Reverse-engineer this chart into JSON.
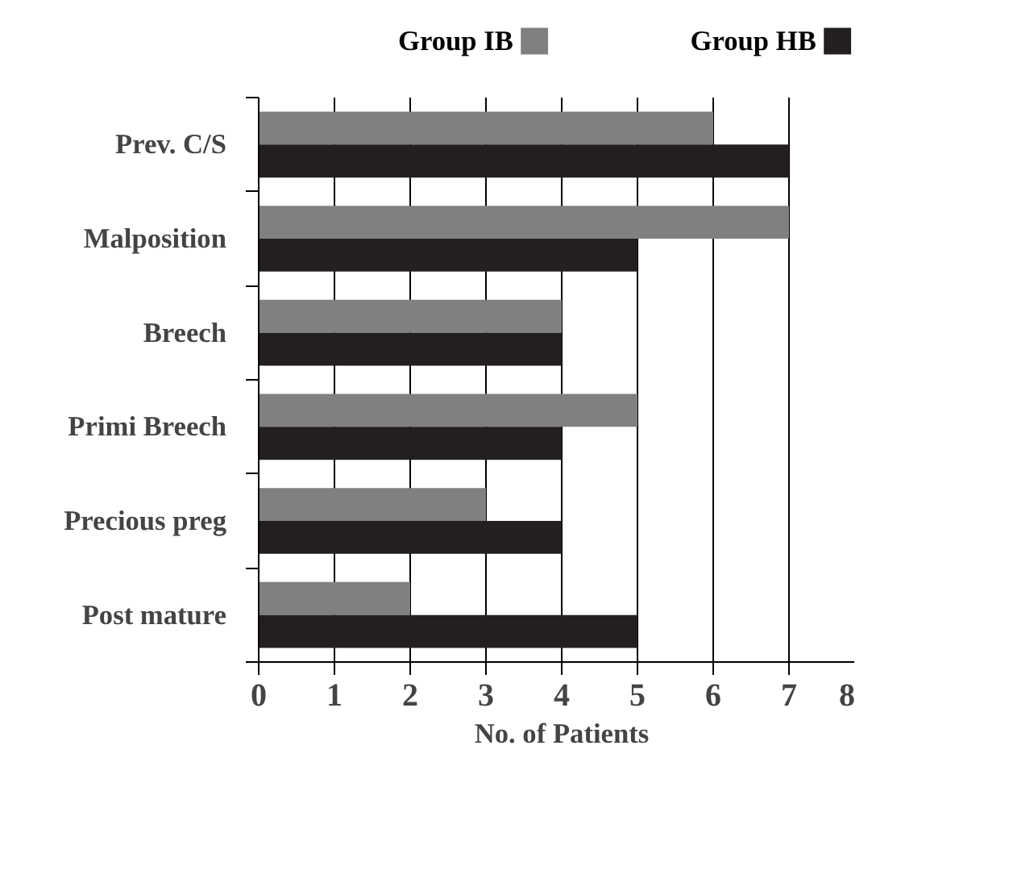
{
  "chart_data": {
    "type": "bar",
    "orientation": "horizontal",
    "xlabel": "No. of Patients",
    "categories": [
      "Prev. C/S",
      "Malposition",
      "Breech",
      "Primi Breech",
      "Precious preg",
      "Post mature"
    ],
    "series": [
      {
        "name": "Group IB",
        "color": "#808080",
        "values": [
          6,
          7,
          4,
          5,
          3,
          2
        ]
      },
      {
        "name": "Group HB",
        "color": "#231f20",
        "values": [
          7,
          5,
          4,
          4,
          4,
          5
        ]
      }
    ],
    "xlim": [
      0,
      8
    ],
    "xticks": [
      0,
      1,
      2,
      3,
      4,
      5,
      6,
      7,
      8
    ],
    "grid": "x",
    "legend": "top"
  }
}
